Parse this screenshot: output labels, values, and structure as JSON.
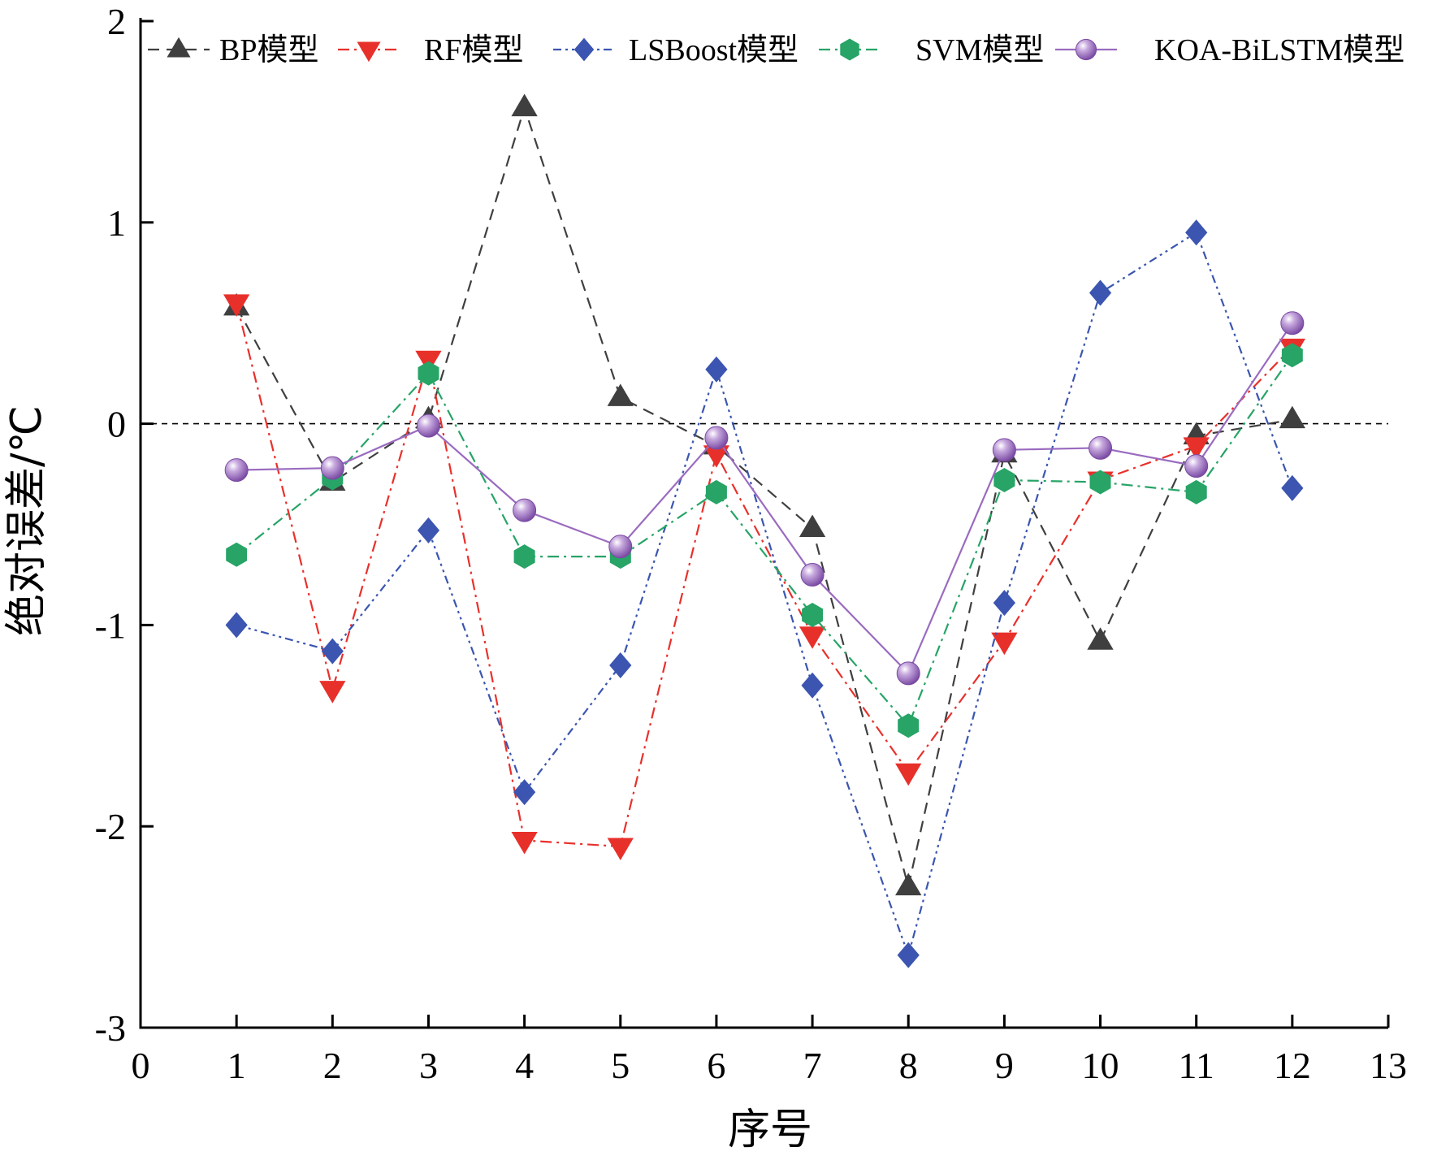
{
  "chart_data": {
    "type": "line",
    "title": "",
    "xlabel": "序号",
    "ylabel": "绝对误差/℃",
    "xlim": [
      0,
      13
    ],
    "ylim": [
      -3,
      2
    ],
    "xticks": [
      0,
      1,
      2,
      3,
      4,
      5,
      6,
      7,
      8,
      9,
      10,
      11,
      12,
      13
    ],
    "yticks": [
      -3,
      -2,
      -1,
      0,
      1,
      2
    ],
    "grid": false,
    "reference_line": {
      "y": 0,
      "style": "dashed"
    },
    "legend_position": "top",
    "x": [
      1,
      2,
      3,
      4,
      5,
      6,
      7,
      8,
      9,
      10,
      11,
      12
    ],
    "series": [
      {
        "name": "BP模型",
        "marker": "triangle-up",
        "dash": "dashed",
        "color": "#3f3f3f",
        "values": [
          0.58,
          -0.29,
          0.02,
          1.57,
          0.13,
          -0.11,
          -0.52,
          -2.3,
          -0.15,
          -1.08,
          -0.06,
          0.02
        ]
      },
      {
        "name": "RF模型",
        "marker": "triangle-down",
        "dash": "dashdot",
        "color": "#e8302b",
        "values": [
          0.6,
          -1.32,
          0.32,
          -2.07,
          -2.1,
          -0.15,
          -1.05,
          -1.73,
          -1.08,
          -0.28,
          -0.11,
          0.38
        ]
      },
      {
        "name": "LSBoost模型",
        "marker": "diamond",
        "dash": "dashdotdot",
        "color": "#3b55b0",
        "values": [
          -1.0,
          -1.13,
          -0.53,
          -1.83,
          -1.2,
          0.27,
          -1.3,
          -2.64,
          -0.89,
          0.65,
          0.95,
          -0.32
        ]
      },
      {
        "name": "SVM模型",
        "marker": "hexagon",
        "dash": "dashdot",
        "color": "#27a466",
        "values": [
          -0.65,
          -0.27,
          0.25,
          -0.66,
          -0.66,
          -0.34,
          -0.95,
          -1.5,
          -0.28,
          -0.29,
          -0.34,
          0.34
        ]
      },
      {
        "name": "KOA-BiLSTM模型",
        "marker": "sphere",
        "dash": "solid",
        "color": "#9a6bc0",
        "values": [
          -0.23,
          -0.22,
          -0.01,
          -0.43,
          -0.61,
          -0.07,
          -0.75,
          -1.24,
          -0.13,
          -0.12,
          -0.21,
          0.5
        ]
      }
    ]
  }
}
